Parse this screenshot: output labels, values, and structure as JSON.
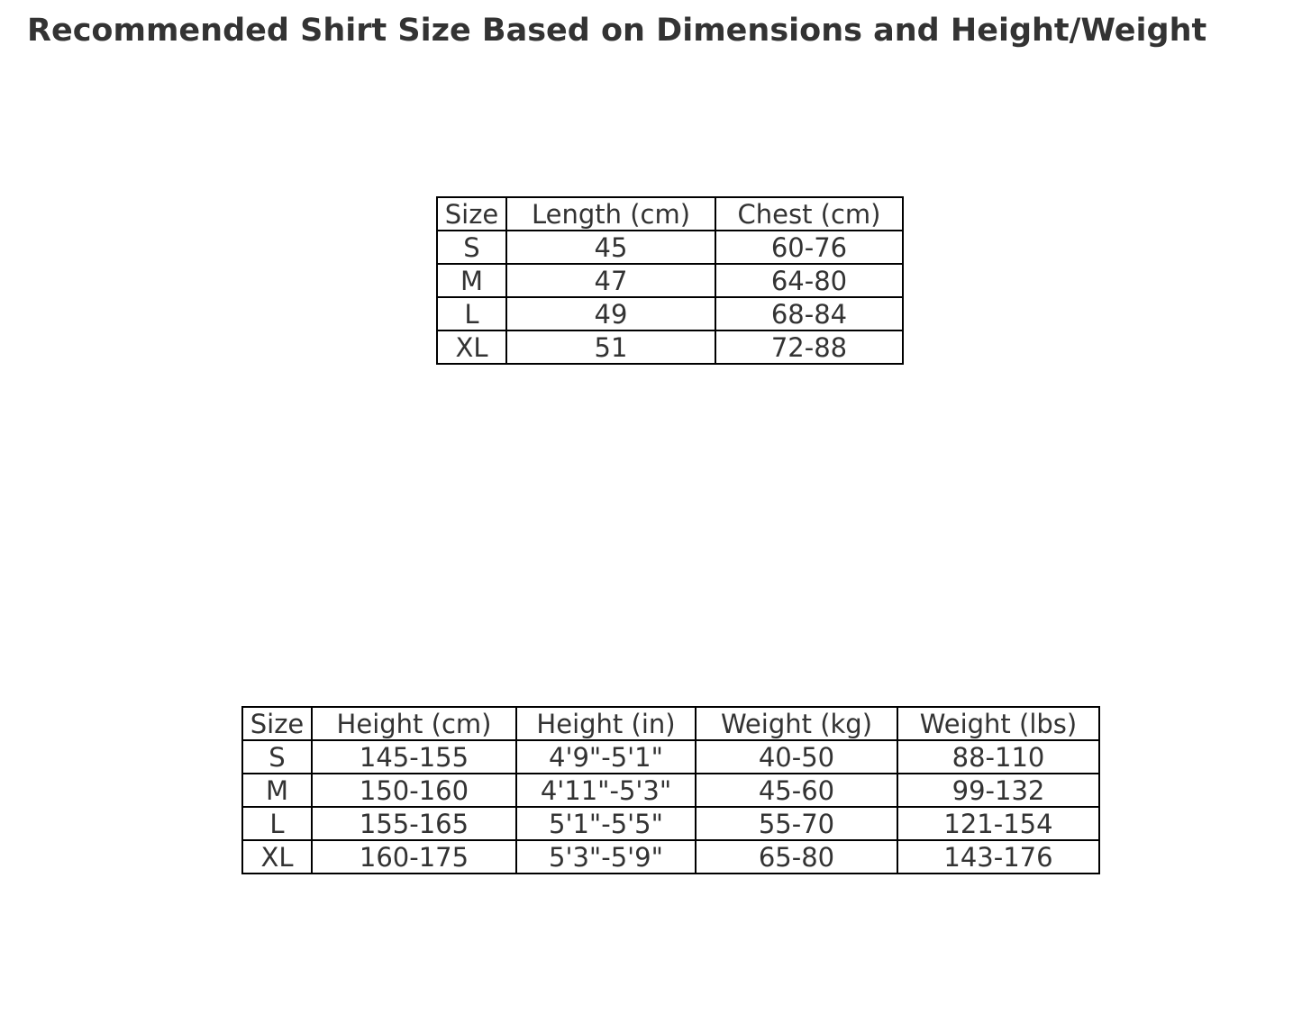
{
  "title": "Recommended Shirt Size Based on Dimensions and Height/Weight",
  "colors": {
    "background": "#ffffff",
    "text": "#333333",
    "table_border": "#000000"
  },
  "chart_data": [
    {
      "type": "table",
      "name": "shirt-dimensions",
      "columns": [
        "Size",
        "Length (cm)",
        "Chest (cm)"
      ],
      "rows": [
        [
          "S",
          "45",
          "60-76"
        ],
        [
          "M",
          "47",
          "64-80"
        ],
        [
          "L",
          "49",
          "68-84"
        ],
        [
          "XL",
          "51",
          "72-88"
        ]
      ]
    },
    {
      "type": "table",
      "name": "height-weight",
      "columns": [
        "Size",
        "Height (cm)",
        "Height (in)",
        "Weight (kg)",
        "Weight (lbs)"
      ],
      "rows": [
        [
          "S",
          "145-155",
          "4'9\"-5'1\"",
          "40-50",
          "88-110"
        ],
        [
          "M",
          "150-160",
          "4'11\"-5'3\"",
          "45-60",
          "99-132"
        ],
        [
          "L",
          "155-165",
          "5'1\"-5'5\"",
          "55-70",
          "121-154"
        ],
        [
          "XL",
          "160-175",
          "5'3\"-5'9\"",
          "65-80",
          "143-176"
        ]
      ]
    }
  ]
}
